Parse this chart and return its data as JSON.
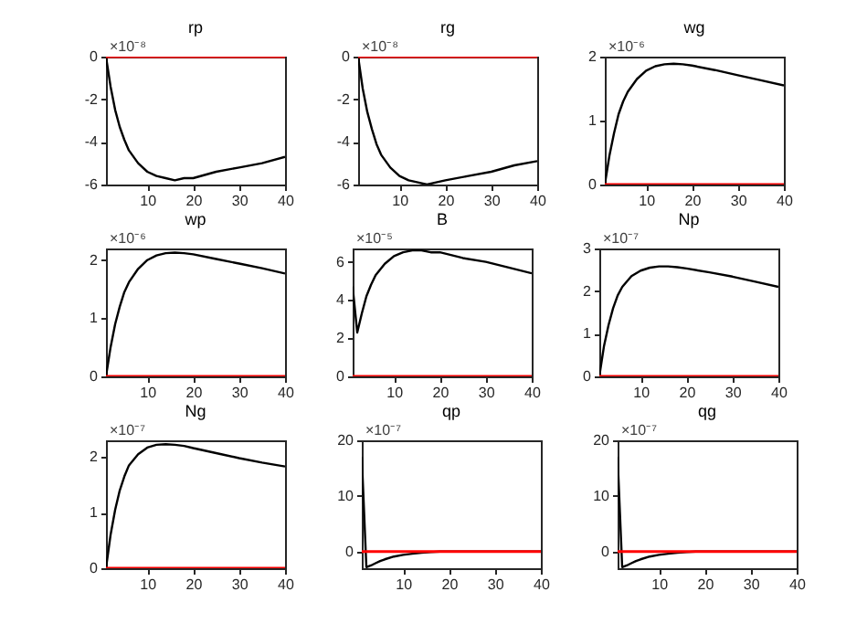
{
  "chart_data": [
    {
      "type": "line",
      "title": "rp",
      "annotations": [
        "×10⁻⁸"
      ],
      "x": [
        1,
        2,
        3,
        4,
        5,
        6,
        8,
        10,
        12,
        14,
        16,
        18,
        20,
        25,
        30,
        35,
        40
      ],
      "xlim": [
        1,
        40
      ],
      "xticks": [
        10,
        20,
        30,
        40
      ],
      "ylim": [
        -6,
        0
      ],
      "yticks": [
        -6,
        -4,
        -2,
        0
      ],
      "series": [
        {
          "color": "#000000",
          "values": [
            0,
            -1.4,
            -2.5,
            -3.3,
            -3.9,
            -4.4,
            -5.0,
            -5.4,
            -5.6,
            -5.7,
            -5.8,
            -5.7,
            -5.7,
            -5.4,
            -5.2,
            -5.0,
            -4.7
          ]
        },
        {
          "color": "#ff0000",
          "values": [
            0,
            0,
            0,
            0,
            0,
            0,
            0,
            0,
            0,
            0,
            0,
            0,
            0,
            0,
            0,
            0,
            0
          ]
        }
      ]
    },
    {
      "type": "line",
      "title": "rg",
      "annotations": [
        "×10⁻⁸"
      ],
      "x": [
        1,
        2,
        3,
        4,
        5,
        6,
        8,
        10,
        12,
        14,
        16,
        18,
        20,
        25,
        30,
        35,
        40
      ],
      "xlim": [
        1,
        40
      ],
      "xticks": [
        10,
        20,
        30,
        40
      ],
      "ylim": [
        -6,
        0
      ],
      "yticks": [
        -6,
        -4,
        -2,
        0
      ],
      "series": [
        {
          "color": "#000000",
          "values": [
            0,
            -1.5,
            -2.6,
            -3.4,
            -4.1,
            -4.6,
            -5.2,
            -5.6,
            -5.8,
            -5.9,
            -6.0,
            -5.9,
            -5.8,
            -5.6,
            -5.4,
            -5.1,
            -4.9
          ]
        },
        {
          "color": "#ff0000",
          "values": [
            0,
            0,
            0,
            0,
            0,
            0,
            0,
            0,
            0,
            0,
            0,
            0,
            0,
            0,
            0,
            0,
            0
          ]
        }
      ]
    },
    {
      "type": "line",
      "title": "wg",
      "annotations": [
        "×10⁻⁶"
      ],
      "x": [
        1,
        2,
        3,
        4,
        5,
        6,
        8,
        10,
        12,
        14,
        16,
        18,
        20,
        25,
        30,
        35,
        40
      ],
      "xlim": [
        1,
        40
      ],
      "xticks": [
        10,
        20,
        30,
        40
      ],
      "ylim": [
        0,
        2
      ],
      "yticks": [
        0,
        1,
        2
      ],
      "series": [
        {
          "color": "#000000",
          "values": [
            0,
            0.45,
            0.8,
            1.1,
            1.3,
            1.45,
            1.65,
            1.78,
            1.85,
            1.88,
            1.89,
            1.88,
            1.86,
            1.79,
            1.71,
            1.63,
            1.55
          ]
        },
        {
          "color": "#ff0000",
          "values": [
            0,
            0,
            0,
            0,
            0,
            0,
            0,
            0,
            0,
            0,
            0,
            0,
            0,
            0,
            0,
            0,
            0
          ]
        }
      ]
    },
    {
      "type": "line",
      "title": "wp",
      "annotations": [
        "×10⁻⁶"
      ],
      "x": [
        1,
        2,
        3,
        4,
        5,
        6,
        8,
        10,
        12,
        14,
        16,
        18,
        20,
        25,
        30,
        35,
        40
      ],
      "xlim": [
        1,
        40
      ],
      "xticks": [
        10,
        20,
        30,
        40
      ],
      "ylim": [
        0,
        2.2
      ],
      "yticks": [
        0,
        1,
        2
      ],
      "series": [
        {
          "color": "#000000",
          "values": [
            0,
            0.5,
            0.9,
            1.2,
            1.45,
            1.62,
            1.85,
            2.0,
            2.08,
            2.12,
            2.13,
            2.12,
            2.1,
            2.02,
            1.94,
            1.86,
            1.77
          ]
        },
        {
          "color": "#ff0000",
          "values": [
            0,
            0,
            0,
            0,
            0,
            0,
            0,
            0,
            0,
            0,
            0,
            0,
            0,
            0,
            0,
            0,
            0
          ]
        }
      ]
    },
    {
      "type": "line",
      "title": "B",
      "annotations": [
        "×10⁻⁵"
      ],
      "x": [
        1,
        2,
        3,
        4,
        5,
        6,
        8,
        10,
        12,
        14,
        16,
        18,
        20,
        25,
        30,
        35,
        40
      ],
      "xlim": [
        1,
        40
      ],
      "xticks": [
        10,
        20,
        30,
        40
      ],
      "ylim": [
        0,
        6.7
      ],
      "yticks": [
        0,
        2,
        4,
        6
      ],
      "series": [
        {
          "color": "#000000",
          "values": [
            4.7,
            2.3,
            3.3,
            4.2,
            4.8,
            5.3,
            5.9,
            6.3,
            6.5,
            6.6,
            6.6,
            6.5,
            6.5,
            6.2,
            6.0,
            5.7,
            5.4
          ]
        },
        {
          "color": "#ff0000",
          "values": [
            0,
            0,
            0,
            0,
            0,
            0,
            0,
            0,
            0,
            0,
            0,
            0,
            0,
            0,
            0,
            0,
            0
          ]
        }
      ]
    },
    {
      "type": "line",
      "title": "Np",
      "annotations": [
        "×10⁻⁷"
      ],
      "x": [
        1,
        2,
        3,
        4,
        5,
        6,
        8,
        10,
        12,
        14,
        16,
        18,
        20,
        25,
        30,
        35,
        40
      ],
      "xlim": [
        1,
        40
      ],
      "xticks": [
        10,
        20,
        30,
        40
      ],
      "ylim": [
        0,
        3
      ],
      "yticks": [
        0,
        1,
        2,
        3
      ],
      "series": [
        {
          "color": "#000000",
          "values": [
            0,
            0.7,
            1.2,
            1.6,
            1.9,
            2.1,
            2.35,
            2.48,
            2.55,
            2.58,
            2.58,
            2.56,
            2.53,
            2.44,
            2.34,
            2.22,
            2.1
          ]
        },
        {
          "color": "#ff0000",
          "values": [
            0,
            0,
            0,
            0,
            0,
            0,
            0,
            0,
            0,
            0,
            0,
            0,
            0,
            0,
            0,
            0,
            0
          ]
        }
      ]
    },
    {
      "type": "line",
      "title": "Ng",
      "annotations": [
        "×10⁻⁷"
      ],
      "x": [
        1,
        2,
        3,
        4,
        5,
        6,
        8,
        10,
        12,
        14,
        16,
        18,
        20,
        25,
        30,
        35,
        40
      ],
      "xlim": [
        1,
        40
      ],
      "xticks": [
        10,
        20,
        30,
        40
      ],
      "ylim": [
        0,
        2.3
      ],
      "yticks": [
        0,
        1,
        2
      ],
      "series": [
        {
          "color": "#000000",
          "values": [
            0,
            0.6,
            1.05,
            1.4,
            1.65,
            1.85,
            2.05,
            2.17,
            2.22,
            2.23,
            2.22,
            2.2,
            2.16,
            2.07,
            1.98,
            1.9,
            1.83
          ]
        },
        {
          "color": "#ff0000",
          "values": [
            0,
            0,
            0,
            0,
            0,
            0,
            0,
            0,
            0,
            0,
            0,
            0,
            0,
            0,
            0,
            0,
            0
          ]
        }
      ]
    },
    {
      "type": "line",
      "title": "qp",
      "annotations": [
        "×10⁻⁷"
      ],
      "x": [
        1,
        2,
        3,
        4,
        5,
        6,
        8,
        10,
        12,
        14,
        16,
        18,
        20,
        25,
        30,
        35,
        40
      ],
      "xlim": [
        1,
        40
      ],
      "xticks": [
        10,
        20,
        30,
        40
      ],
      "ylim": [
        -3,
        20
      ],
      "yticks": [
        0,
        10,
        20
      ],
      "series": [
        {
          "color": "#000000",
          "values": [
            17,
            -2.8,
            -2.5,
            -2.1,
            -1.7,
            -1.4,
            -0.9,
            -0.6,
            -0.4,
            -0.2,
            -0.1,
            0,
            0,
            0,
            0,
            0,
            0
          ]
        },
        {
          "color": "#ff0000",
          "values": [
            0,
            0,
            0,
            0,
            0,
            0,
            0,
            0,
            0,
            0,
            0,
            0,
            0,
            0,
            0,
            0,
            0
          ]
        }
      ]
    },
    {
      "type": "line",
      "title": "qg",
      "annotations": [
        "×10⁻⁷"
      ],
      "x": [
        1,
        2,
        3,
        4,
        5,
        6,
        8,
        10,
        12,
        14,
        16,
        18,
        20,
        25,
        30,
        35,
        40
      ],
      "xlim": [
        1,
        40
      ],
      "xticks": [
        10,
        20,
        30,
        40
      ],
      "ylim": [
        -3,
        20
      ],
      "yticks": [
        0,
        10,
        20
      ],
      "series": [
        {
          "color": "#000000",
          "values": [
            17,
            -2.8,
            -2.5,
            -2.1,
            -1.7,
            -1.4,
            -0.9,
            -0.6,
            -0.4,
            -0.2,
            -0.1,
            0,
            0,
            0,
            0,
            0,
            0
          ]
        },
        {
          "color": "#ff0000",
          "values": [
            0,
            0,
            0,
            0,
            0,
            0,
            0,
            0,
            0,
            0,
            0,
            0,
            0,
            0,
            0,
            0,
            0
          ]
        }
      ]
    }
  ]
}
